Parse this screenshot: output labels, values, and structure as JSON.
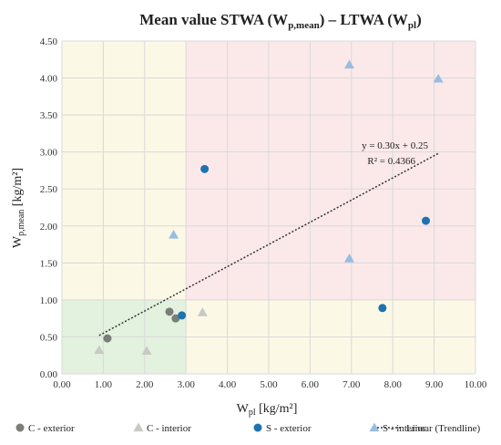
{
  "chart_data": {
    "type": "scatter",
    "title": {
      "lead": "Mean value STWA (W",
      "sub1": "p,mean",
      "mid": ") – LTWA (W",
      "sub2": "pl",
      "tail": ")"
    },
    "xlabel": {
      "base": "W",
      "sub": "pl",
      "unit": " [kg/m²]"
    },
    "ylabel": {
      "base": "W",
      "sub": "p,mean",
      "unit": " [kg/m²]"
    },
    "xlim": [
      0,
      10
    ],
    "ylim": [
      0,
      4.5
    ],
    "xticks": [
      "0.00",
      "1.00",
      "2.00",
      "3.00",
      "4.00",
      "5.00",
      "6.00",
      "7.00",
      "8.00",
      "9.00",
      "10.00"
    ],
    "yticks": [
      "0.00",
      "0.50",
      "1.00",
      "1.50",
      "2.00",
      "2.50",
      "3.00",
      "3.50",
      "4.00",
      "4.50"
    ],
    "grid": true,
    "zones": [
      {
        "name": "low",
        "x": [
          0,
          3
        ],
        "y": [
          0,
          1
        ],
        "color": "#e3f1df"
      },
      {
        "name": "mid-left",
        "x": [
          0,
          3
        ],
        "y": [
          1,
          4.5
        ],
        "color": "#fcf8e6"
      },
      {
        "name": "mid-bottom",
        "x": [
          3,
          10
        ],
        "y": [
          0,
          1
        ],
        "color": "#fcf8e6"
      },
      {
        "name": "high",
        "x": [
          3,
          10
        ],
        "y": [
          1,
          4.5
        ],
        "color": "#fbe9ea"
      }
    ],
    "series": [
      {
        "name": "C - exterior",
        "marker": "circle",
        "color": "#7a7d78",
        "points": [
          [
            1.1,
            0.48
          ],
          [
            2.6,
            0.84
          ],
          [
            2.75,
            0.75
          ]
        ]
      },
      {
        "name": "C - interior",
        "marker": "triangle",
        "color": "#c7c9c3",
        "points": [
          [
            0.9,
            0.32
          ],
          [
            2.05,
            0.31
          ],
          [
            3.4,
            0.83
          ]
        ]
      },
      {
        "name": "S - exterior",
        "marker": "circle",
        "color": "#1f72b0",
        "points": [
          [
            2.9,
            0.79
          ],
          [
            3.45,
            2.77
          ],
          [
            7.75,
            0.89
          ],
          [
            8.8,
            2.07
          ]
        ]
      },
      {
        "name": "S - interior",
        "marker": "triangle",
        "color": "#99bde0",
        "points": [
          [
            2.7,
            1.88
          ],
          [
            6.95,
            4.18
          ],
          [
            6.95,
            1.56
          ],
          [
            9.1,
            3.99
          ]
        ]
      }
    ],
    "trendline": {
      "name": "Linear (Trendline)",
      "slope": 0.3,
      "intercept": 0.25,
      "x_range": [
        0.9,
        9.1
      ],
      "equation": "y = 0.30x + 0.25",
      "r2": "R² = 0.4366",
      "color": "#333333"
    },
    "legend_placement": "bottom"
  }
}
